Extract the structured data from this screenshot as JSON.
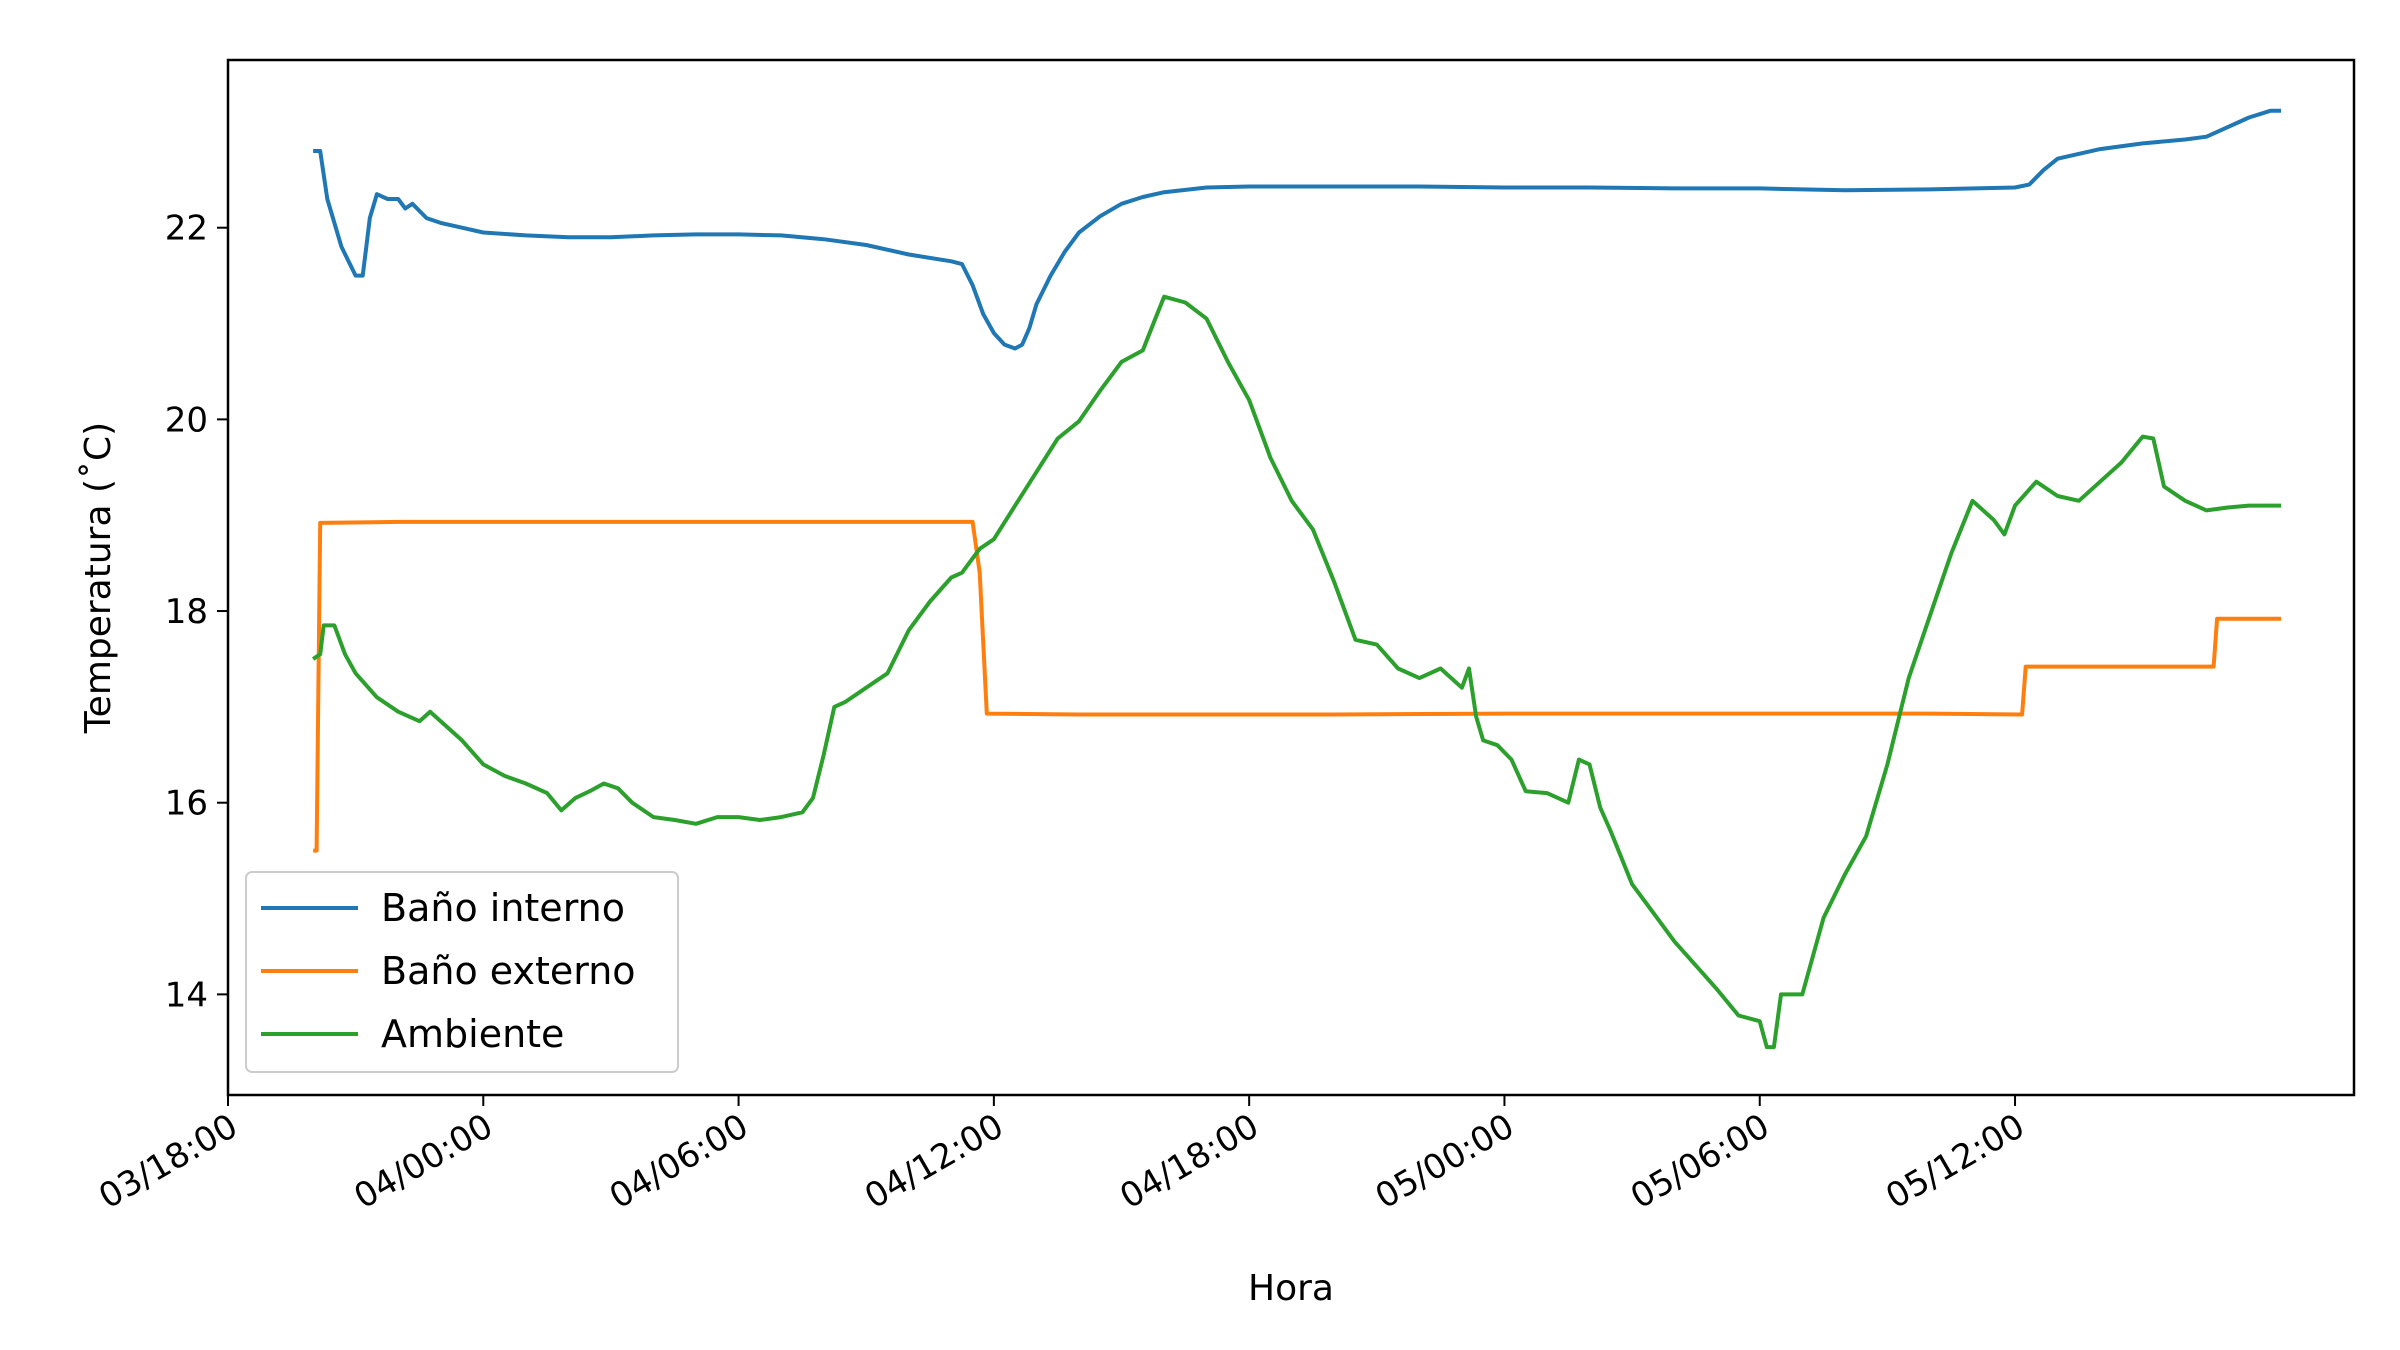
{
  "chart_data": {
    "type": "line",
    "xlabel": "Hora",
    "ylabel": "Temperatura ($^\\circ$C)",
    "ylabel_display": "Temperatura (˚C)",
    "xlim": [
      "03/18:00",
      "05/19:58"
    ],
    "ylim": [
      12.95,
      23.75
    ],
    "x_ticks": [
      "03/18:00",
      "04/00:00",
      "04/06:00",
      "04/12:00",
      "04/18:00",
      "05/00:00",
      "05/06:00",
      "05/12:00"
    ],
    "y_ticks": [
      14,
      16,
      18,
      20,
      22
    ],
    "grid": false,
    "legend_position": "lower-left",
    "series": [
      {
        "name": "Baño interno",
        "color": "#1f77b4",
        "points": [
          [
            "03/20:00",
            22.8
          ],
          [
            "03/20:10",
            22.8
          ],
          [
            "03/20:20",
            22.3
          ],
          [
            "03/20:40",
            21.8
          ],
          [
            "03/21:00",
            21.5
          ],
          [
            "03/21:10",
            21.5
          ],
          [
            "03/21:15",
            21.8
          ],
          [
            "03/21:20",
            22.1
          ],
          [
            "03/21:30",
            22.35
          ],
          [
            "03/21:45",
            22.3
          ],
          [
            "03/22:00",
            22.3
          ],
          [
            "03/22:10",
            22.2
          ],
          [
            "03/22:20",
            22.25
          ],
          [
            "03/22:40",
            22.1
          ],
          [
            "03/23:00",
            22.05
          ],
          [
            "03/23:30",
            22.0
          ],
          [
            "04/00:00",
            21.95
          ],
          [
            "04/01:00",
            21.92
          ],
          [
            "04/02:00",
            21.9
          ],
          [
            "04/03:00",
            21.9
          ],
          [
            "04/04:00",
            21.92
          ],
          [
            "04/05:00",
            21.93
          ],
          [
            "04/06:00",
            21.93
          ],
          [
            "04/07:00",
            21.92
          ],
          [
            "04/08:00",
            21.88
          ],
          [
            "04/09:00",
            21.82
          ],
          [
            "04/10:00",
            21.72
          ],
          [
            "04/11:00",
            21.65
          ],
          [
            "04/11:15",
            21.62
          ],
          [
            "04/11:30",
            21.4
          ],
          [
            "04/11:45",
            21.1
          ],
          [
            "04/12:00",
            20.9
          ],
          [
            "04/12:15",
            20.78
          ],
          [
            "04/12:30",
            20.74
          ],
          [
            "04/12:40",
            20.78
          ],
          [
            "04/12:50",
            20.95
          ],
          [
            "04/13:00",
            21.2
          ],
          [
            "04/13:20",
            21.5
          ],
          [
            "04/13:40",
            21.75
          ],
          [
            "04/14:00",
            21.95
          ],
          [
            "04/14:30",
            22.12
          ],
          [
            "04/15:00",
            22.25
          ],
          [
            "04/15:30",
            22.32
          ],
          [
            "04/16:00",
            22.37
          ],
          [
            "04/17:00",
            22.42
          ],
          [
            "04/18:00",
            22.43
          ],
          [
            "04/20:00",
            22.43
          ],
          [
            "04/22:00",
            22.43
          ],
          [
            "05/00:00",
            22.42
          ],
          [
            "05/02:00",
            22.42
          ],
          [
            "05/04:00",
            22.41
          ],
          [
            "05/06:00",
            22.41
          ],
          [
            "05/07:00",
            22.4
          ],
          [
            "05/08:00",
            22.39
          ],
          [
            "05/10:00",
            22.4
          ],
          [
            "05/12:00",
            22.42
          ],
          [
            "05/12:20",
            22.45
          ],
          [
            "05/12:40",
            22.6
          ],
          [
            "05/13:00",
            22.72
          ],
          [
            "05/14:00",
            22.82
          ],
          [
            "05/15:00",
            22.88
          ],
          [
            "05/16:00",
            22.92
          ],
          [
            "05/16:30",
            22.95
          ],
          [
            "05/17:00",
            23.05
          ],
          [
            "05/17:30",
            23.15
          ],
          [
            "05/18:00",
            23.22
          ],
          [
            "05/18:15",
            23.22
          ]
        ]
      },
      {
        "name": "Baño externo",
        "color": "#ff7f0e",
        "points": [
          [
            "03/20:00",
            15.5
          ],
          [
            "03/20:05",
            15.5
          ],
          [
            "03/20:10",
            18.92
          ],
          [
            "03/22:00",
            18.93
          ],
          [
            "04/02:00",
            18.93
          ],
          [
            "04/06:00",
            18.93
          ],
          [
            "04/09:00",
            18.93
          ],
          [
            "04/11:30",
            18.93
          ],
          [
            "04/11:40",
            18.4
          ],
          [
            "04/11:50",
            16.93
          ],
          [
            "04/14:00",
            16.92
          ],
          [
            "04/20:00",
            16.92
          ],
          [
            "05/00:00",
            16.93
          ],
          [
            "05/06:00",
            16.93
          ],
          [
            "05/10:00",
            16.93
          ],
          [
            "05/12:10",
            16.92
          ],
          [
            "05/12:15",
            17.42
          ],
          [
            "05/14:00",
            17.42
          ],
          [
            "05/16:40",
            17.42
          ],
          [
            "05/16:45",
            17.92
          ],
          [
            "05/18:15",
            17.92
          ]
        ]
      },
      {
        "name": "Ambiente",
        "color": "#2ca02c",
        "points": [
          [
            "03/20:00",
            17.5
          ],
          [
            "03/20:10",
            17.55
          ],
          [
            "03/20:15",
            17.85
          ],
          [
            "03/20:30",
            17.85
          ],
          [
            "03/20:45",
            17.55
          ],
          [
            "03/21:00",
            17.35
          ],
          [
            "03/21:30",
            17.1
          ],
          [
            "03/22:00",
            16.95
          ],
          [
            "03/22:30",
            16.85
          ],
          [
            "03/22:45",
            16.95
          ],
          [
            "03/23:00",
            16.85
          ],
          [
            "03/23:30",
            16.65
          ],
          [
            "04/00:00",
            16.4
          ],
          [
            "04/00:30",
            16.28
          ],
          [
            "04/01:00",
            16.2
          ],
          [
            "04/01:30",
            16.1
          ],
          [
            "04/01:50",
            15.92
          ],
          [
            "04/02:10",
            16.05
          ],
          [
            "04/02:30",
            16.12
          ],
          [
            "04/02:50",
            16.2
          ],
          [
            "04/03:10",
            16.15
          ],
          [
            "04/03:30",
            16.0
          ],
          [
            "04/04:00",
            15.85
          ],
          [
            "04/04:30",
            15.82
          ],
          [
            "04/05:00",
            15.78
          ],
          [
            "04/05:30",
            15.85
          ],
          [
            "04/06:00",
            15.85
          ],
          [
            "04/06:30",
            15.82
          ],
          [
            "04/07:00",
            15.85
          ],
          [
            "04/07:30",
            15.9
          ],
          [
            "04/07:45",
            16.05
          ],
          [
            "04/08:00",
            16.5
          ],
          [
            "04/08:15",
            17.0
          ],
          [
            "04/08:30",
            17.05
          ],
          [
            "04/09:00",
            17.2
          ],
          [
            "04/09:30",
            17.35
          ],
          [
            "04/10:00",
            17.8
          ],
          [
            "04/10:30",
            18.1
          ],
          [
            "04/11:00",
            18.35
          ],
          [
            "04/11:15",
            18.4
          ],
          [
            "04/11:40",
            18.65
          ],
          [
            "04/12:00",
            18.75
          ],
          [
            "04/12:30",
            19.1
          ],
          [
            "04/13:00",
            19.45
          ],
          [
            "04/13:30",
            19.8
          ],
          [
            "04/14:00",
            19.98
          ],
          [
            "04/14:30",
            20.3
          ],
          [
            "04/15:00",
            20.6
          ],
          [
            "04/15:30",
            20.72
          ],
          [
            "04/15:45",
            21.0
          ],
          [
            "04/16:00",
            21.28
          ],
          [
            "04/16:30",
            21.22
          ],
          [
            "04/17:00",
            21.05
          ],
          [
            "04/17:30",
            20.6
          ],
          [
            "04/18:00",
            20.2
          ],
          [
            "04/18:30",
            19.6
          ],
          [
            "04/19:00",
            19.15
          ],
          [
            "04/19:30",
            18.85
          ],
          [
            "04/20:00",
            18.3
          ],
          [
            "04/20:30",
            17.7
          ],
          [
            "04/21:00",
            17.65
          ],
          [
            "04/21:30",
            17.4
          ],
          [
            "04/22:00",
            17.3
          ],
          [
            "04/22:30",
            17.4
          ],
          [
            "04/23:00",
            17.2
          ],
          [
            "04/23:10",
            17.4
          ],
          [
            "04/23:20",
            16.9
          ],
          [
            "04/23:30",
            16.65
          ],
          [
            "04/23:50",
            16.6
          ],
          [
            "05/00:10",
            16.45
          ],
          [
            "05/00:30",
            16.12
          ],
          [
            "05/01:00",
            16.1
          ],
          [
            "05/01:30",
            16.0
          ],
          [
            "05/01:45",
            16.45
          ],
          [
            "05/02:00",
            16.4
          ],
          [
            "05/02:15",
            15.95
          ],
          [
            "05/02:30",
            15.7
          ],
          [
            "05/03:00",
            15.15
          ],
          [
            "05/03:30",
            14.85
          ],
          [
            "05/04:00",
            14.55
          ],
          [
            "05/04:30",
            14.3
          ],
          [
            "05/05:00",
            14.05
          ],
          [
            "05/05:30",
            13.78
          ],
          [
            "05/06:00",
            13.72
          ],
          [
            "05/06:10",
            13.45
          ],
          [
            "05/06:20",
            13.45
          ],
          [
            "05/06:30",
            14.0
          ],
          [
            "05/07:00",
            14.0
          ],
          [
            "05/07:30",
            14.8
          ],
          [
            "05/08:00",
            15.25
          ],
          [
            "05/08:30",
            15.65
          ],
          [
            "05/09:00",
            16.4
          ],
          [
            "05/09:30",
            17.3
          ],
          [
            "05/10:00",
            17.95
          ],
          [
            "05/10:30",
            18.6
          ],
          [
            "05/11:00",
            19.15
          ],
          [
            "05/11:30",
            18.95
          ],
          [
            "05/11:45",
            18.8
          ],
          [
            "05/12:00",
            19.1
          ],
          [
            "05/12:30",
            19.35
          ],
          [
            "05/13:00",
            19.2
          ],
          [
            "05/13:30",
            19.15
          ],
          [
            "05/14:00",
            19.35
          ],
          [
            "05/14:30",
            19.55
          ],
          [
            "05/15:00",
            19.82
          ],
          [
            "05/15:15",
            19.8
          ],
          [
            "05/15:30",
            19.3
          ],
          [
            "05/16:00",
            19.15
          ],
          [
            "05/16:30",
            19.05
          ],
          [
            "05/17:00",
            19.08
          ],
          [
            "05/17:30",
            19.1
          ],
          [
            "05/18:15",
            19.1
          ]
        ]
      }
    ]
  }
}
